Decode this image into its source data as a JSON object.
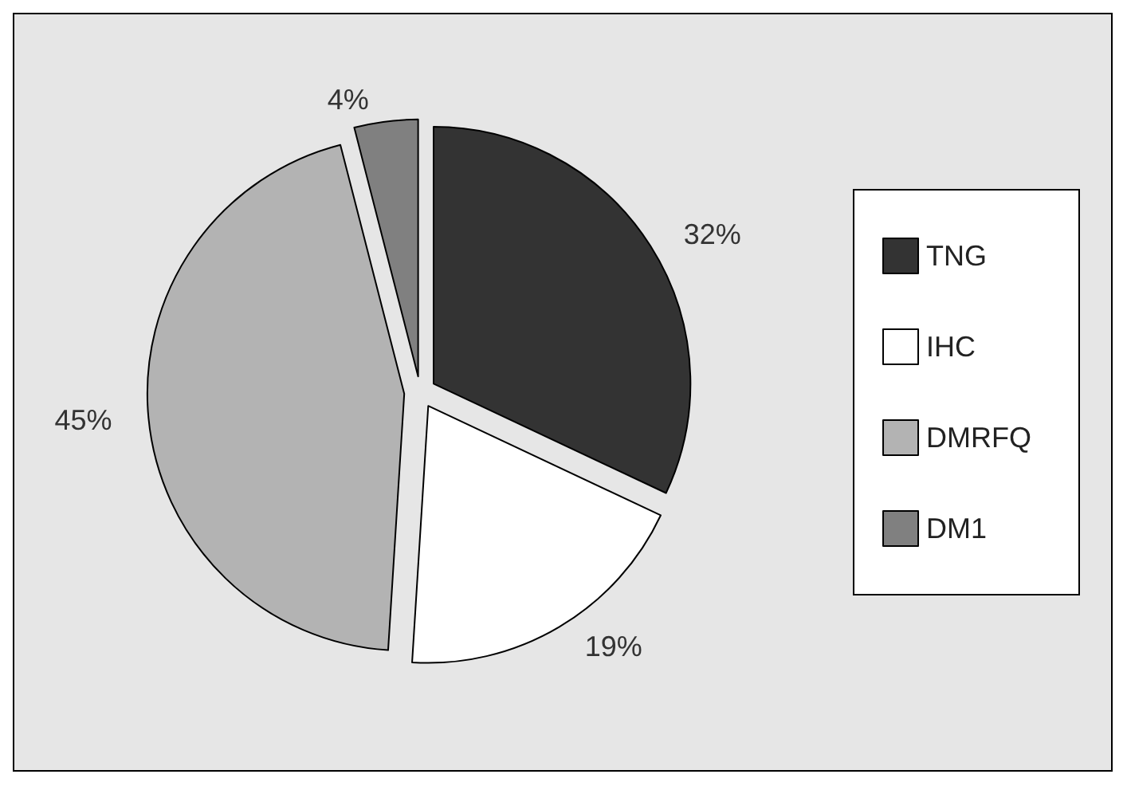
{
  "chart_data": {
    "type": "pie",
    "categories": [
      "TNG",
      "IHC",
      "DMRFQ",
      "DM1"
    ],
    "values": [
      32,
      19,
      45,
      4
    ],
    "colors": [
      "#333333",
      "#ffffff",
      "#b3b3b3",
      "#808080"
    ],
    "value_labels": [
      "32%",
      "19%",
      "45%",
      "4%"
    ],
    "legend": "right"
  }
}
